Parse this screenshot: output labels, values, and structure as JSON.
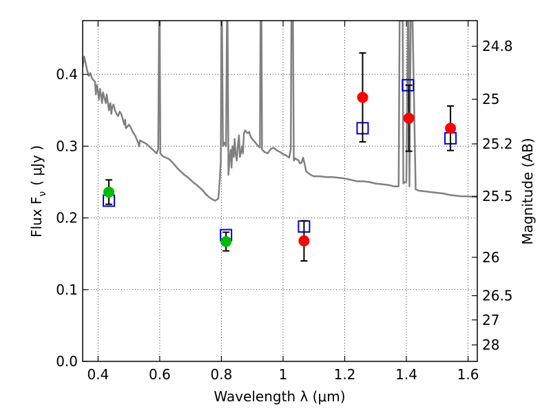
{
  "chart_data": {
    "type": "scatter",
    "title": "",
    "xlabel": "Wavelength  λ (μm)",
    "ylabel": "Flux  F",
    "ylabel_sub": "ν",
    "ylabel_units": "( μJy )",
    "y2label": "Magnitude (AB)",
    "xlim": [
      0.35,
      1.63
    ],
    "ylim": [
      0.0,
      0.475
    ],
    "grid": true,
    "x_ticks": [
      0.4,
      0.6,
      0.8,
      1.0,
      1.2,
      1.4,
      1.6
    ],
    "x_tick_labels": [
      "0.4",
      "0.6",
      "0.8",
      "1",
      "1.2",
      "1.4",
      "1.6"
    ],
    "y_ticks": [
      0.0,
      0.1,
      0.2,
      0.3,
      0.4
    ],
    "y_tick_labels": [
      "0.0",
      "0.1",
      "0.2",
      "0.3",
      "0.4"
    ],
    "y2_ticks": [
      {
        "label": "24.8",
        "flux": 0.4393
      },
      {
        "label": "25",
        "flux": 0.3654
      },
      {
        "label": "25.2",
        "flux": 0.3032
      },
      {
        "label": "25.5",
        "flux": 0.2301
      },
      {
        "label": "26",
        "flux": 0.1451
      },
      {
        "label": "26.5",
        "flux": 0.0916
      },
      {
        "label": "27",
        "flux": 0.0578
      },
      {
        "label": "28",
        "flux": 0.023
      }
    ],
    "series": [
      {
        "marker": "open-square",
        "color": "#0000cc",
        "points": [
          {
            "x": 0.435,
            "y": 0.224
          },
          {
            "x": 0.815,
            "y": 0.176
          },
          {
            "x": 1.068,
            "y": 0.188
          },
          {
            "x": 1.258,
            "y": 0.325
          },
          {
            "x": 1.405,
            "y": 0.385
          },
          {
            "x": 1.543,
            "y": 0.311
          }
        ]
      },
      {
        "marker": "filled-circle",
        "color": "#00bb00",
        "points": [
          {
            "x": 0.435,
            "y": 0.236,
            "err": 0.017
          },
          {
            "x": 0.815,
            "y": 0.167,
            "err": 0.013
          }
        ]
      },
      {
        "marker": "filled-circle",
        "color": "#ff0000",
        "points": [
          {
            "x": 1.068,
            "y": 0.168,
            "err": 0.028
          },
          {
            "x": 1.258,
            "y": 0.368,
            "err": 0.062
          },
          {
            "x": 1.408,
            "y": 0.339,
            "err": 0.046
          },
          {
            "x": 1.543,
            "y": 0.325,
            "err": 0.031
          }
        ]
      }
    ],
    "spectrum": {
      "color": "#808080",
      "points": [
        [
          0.35,
          0.41
        ],
        [
          0.355,
          0.425
        ],
        [
          0.36,
          0.415
        ],
        [
          0.365,
          0.405
        ],
        [
          0.37,
          0.398
        ],
        [
          0.375,
          0.402
        ],
        [
          0.38,
          0.395
        ],
        [
          0.385,
          0.392
        ],
        [
          0.39,
          0.39
        ],
        [
          0.393,
          0.372
        ],
        [
          0.396,
          0.385
        ],
        [
          0.4,
          0.375
        ],
        [
          0.403,
          0.365
        ],
        [
          0.406,
          0.38
        ],
        [
          0.41,
          0.37
        ],
        [
          0.413,
          0.36
        ],
        [
          0.416,
          0.375
        ],
        [
          0.42,
          0.368
        ],
        [
          0.425,
          0.36
        ],
        [
          0.428,
          0.372
        ],
        [
          0.432,
          0.36
        ],
        [
          0.435,
          0.35
        ],
        [
          0.438,
          0.358
        ],
        [
          0.44,
          0.36
        ],
        [
          0.443,
          0.345
        ],
        [
          0.446,
          0.355
        ],
        [
          0.45,
          0.358
        ],
        [
          0.455,
          0.35
        ],
        [
          0.46,
          0.345
        ],
        [
          0.465,
          0.342
        ],
        [
          0.47,
          0.348
        ],
        [
          0.475,
          0.345
        ],
        [
          0.48,
          0.338
        ],
        [
          0.485,
          0.33
        ],
        [
          0.488,
          0.337
        ],
        [
          0.49,
          0.325
        ],
        [
          0.495,
          0.327
        ],
        [
          0.5,
          0.33
        ],
        [
          0.505,
          0.327
        ],
        [
          0.51,
          0.322
        ],
        [
          0.515,
          0.318
        ],
        [
          0.52,
          0.315
        ],
        [
          0.525,
          0.31
        ],
        [
          0.53,
          0.305
        ],
        [
          0.533,
          0.3
        ],
        [
          0.536,
          0.308
        ],
        [
          0.54,
          0.307
        ],
        [
          0.55,
          0.305
        ],
        [
          0.56,
          0.302
        ],
        [
          0.57,
          0.298
        ],
        [
          0.58,
          0.294
        ],
        [
          0.59,
          0.29
        ],
        [
          0.595,
          0.296
        ],
        [
          0.598,
          0.475
        ],
        [
          0.6,
          0.475
        ],
        [
          0.602,
          0.29
        ],
        [
          0.61,
          0.286
        ],
        [
          0.62,
          0.284
        ],
        [
          0.63,
          0.282
        ],
        [
          0.64,
          0.278
        ],
        [
          0.65,
          0.273
        ],
        [
          0.66,
          0.268
        ],
        [
          0.67,
          0.264
        ],
        [
          0.68,
          0.26
        ],
        [
          0.69,
          0.257
        ],
        [
          0.7,
          0.253
        ],
        [
          0.71,
          0.249
        ],
        [
          0.72,
          0.246
        ],
        [
          0.73,
          0.242
        ],
        [
          0.74,
          0.238
        ],
        [
          0.75,
          0.233
        ],
        [
          0.76,
          0.229
        ],
        [
          0.77,
          0.226
        ],
        [
          0.78,
          0.224
        ],
        [
          0.79,
          0.227
        ],
        [
          0.795,
          0.255
        ],
        [
          0.798,
          0.28
        ],
        [
          0.8,
          0.475
        ],
        [
          0.802,
          0.475
        ],
        [
          0.805,
          0.3
        ],
        [
          0.81,
          0.305
        ],
        [
          0.815,
          0.3
        ],
        [
          0.818,
          0.475
        ],
        [
          0.82,
          0.475
        ],
        [
          0.823,
          0.26
        ],
        [
          0.826,
          0.28
        ],
        [
          0.83,
          0.295
        ],
        [
          0.833,
          0.27
        ],
        [
          0.836,
          0.3
        ],
        [
          0.84,
          0.285
        ],
        [
          0.843,
          0.31
        ],
        [
          0.846,
          0.29
        ],
        [
          0.85,
          0.28
        ],
        [
          0.853,
          0.3
        ],
        [
          0.857,
          0.315
        ],
        [
          0.86,
          0.285
        ],
        [
          0.863,
          0.29
        ],
        [
          0.867,
          0.3
        ],
        [
          0.87,
          0.29
        ],
        [
          0.873,
          0.318
        ],
        [
          0.877,
          0.322
        ],
        [
          0.88,
          0.32
        ],
        [
          0.885,
          0.318
        ],
        [
          0.89,
          0.32
        ],
        [
          0.895,
          0.313
        ],
        [
          0.9,
          0.31
        ],
        [
          0.91,
          0.305
        ],
        [
          0.92,
          0.3
        ],
        [
          0.925,
          0.298
        ],
        [
          0.927,
          0.475
        ],
        [
          0.93,
          0.475
        ],
        [
          0.932,
          0.295
        ],
        [
          0.94,
          0.292
        ],
        [
          0.95,
          0.29
        ],
        [
          0.96,
          0.296
        ],
        [
          0.97,
          0.298
        ],
        [
          0.98,
          0.294
        ],
        [
          0.99,
          0.292
        ],
        [
          1.0,
          0.289
        ],
        [
          1.01,
          0.287
        ],
        [
          1.02,
          0.284
        ],
        [
          1.025,
          0.296
        ],
        [
          1.027,
          0.475
        ],
        [
          1.032,
          0.475
        ],
        [
          1.035,
          0.28
        ],
        [
          1.04,
          0.283
        ],
        [
          1.05,
          0.28
        ],
        [
          1.055,
          0.276
        ],
        [
          1.06,
          0.277
        ],
        [
          1.065,
          0.284
        ],
        [
          1.07,
          0.275
        ],
        [
          1.075,
          0.265
        ],
        [
          1.08,
          0.263
        ],
        [
          1.09,
          0.26
        ],
        [
          1.1,
          0.258
        ],
        [
          1.12,
          0.258
        ],
        [
          1.14,
          0.257
        ],
        [
          1.16,
          0.257
        ],
        [
          1.18,
          0.256
        ],
        [
          1.2,
          0.255
        ],
        [
          1.22,
          0.253
        ],
        [
          1.24,
          0.251
        ],
        [
          1.26,
          0.251
        ],
        [
          1.28,
          0.25
        ],
        [
          1.3,
          0.248
        ],
        [
          1.32,
          0.247
        ],
        [
          1.34,
          0.246
        ],
        [
          1.36,
          0.244
        ],
        [
          1.375,
          0.244
        ],
        [
          1.378,
          0.475
        ],
        [
          1.388,
          0.475
        ],
        [
          1.39,
          0.248
        ],
        [
          1.395,
          0.25
        ],
        [
          1.4,
          0.25
        ],
        [
          1.405,
          0.475
        ],
        [
          1.407,
          0.475
        ],
        [
          1.41,
          0.244
        ],
        [
          1.414,
          0.475
        ],
        [
          1.42,
          0.475
        ],
        [
          1.43,
          0.24
        ],
        [
          1.44,
          0.238
        ],
        [
          1.46,
          0.237
        ],
        [
          1.48,
          0.236
        ],
        [
          1.5,
          0.235
        ],
        [
          1.52,
          0.234
        ],
        [
          1.54,
          0.232
        ],
        [
          1.56,
          0.231
        ],
        [
          1.58,
          0.23
        ],
        [
          1.6,
          0.23
        ],
        [
          1.63,
          0.229
        ]
      ]
    }
  }
}
